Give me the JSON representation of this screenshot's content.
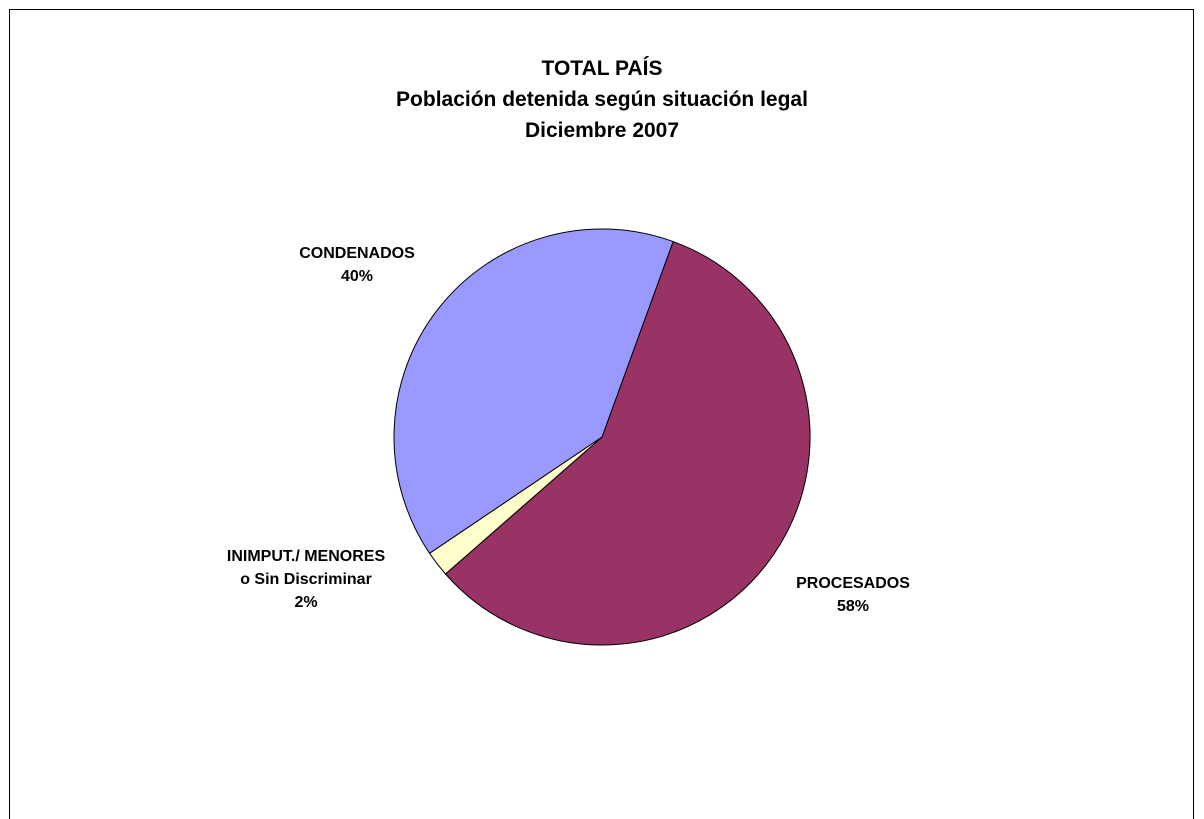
{
  "chart_data": {
    "type": "pie",
    "title": [
      "TOTAL PAÍS",
      "Población detenida según situación legal",
      "Diciembre 2007"
    ],
    "slices": [
      {
        "label": [
          "PROCESADOS"
        ],
        "percent_label": "58%",
        "value": 58,
        "color": "#993366"
      },
      {
        "label": [
          "INIMPUT./ MENORES",
          "o Sin Discriminar"
        ],
        "percent_label": "2%",
        "value": 2,
        "color": "#FFFFCC"
      },
      {
        "label": [
          "CONDENADOS"
        ],
        "percent_label": "40%",
        "value": 40,
        "color": "#9999FF"
      }
    ],
    "start_angle_deg": 20,
    "direction": "clockwise",
    "legend": "none"
  }
}
